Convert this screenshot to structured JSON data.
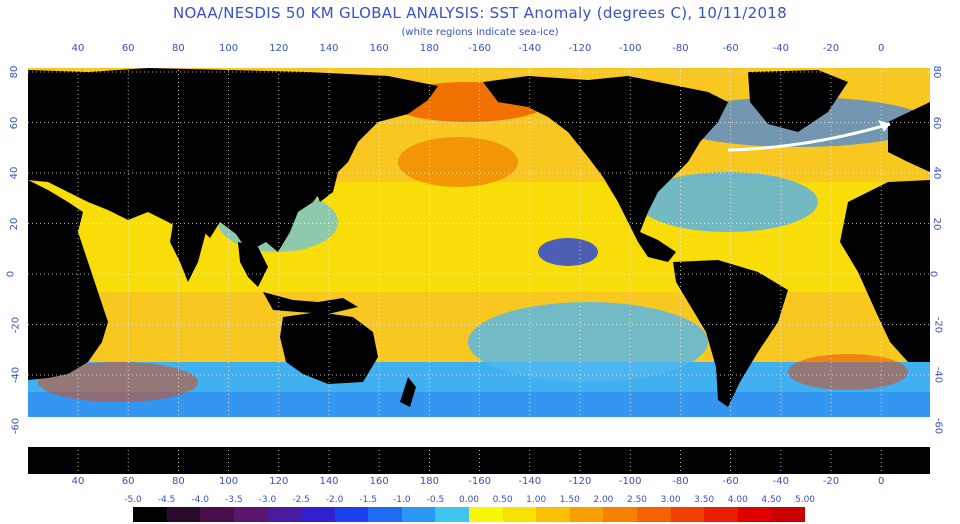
{
  "header": {
    "title": "NOAA/NESDIS 50 KM GLOBAL ANALYSIS: SST Anomaly (degrees C), 10/11/2018",
    "subtitle": "(white regions indicate sea-ice)"
  },
  "axes": {
    "top_ticks": [
      "40",
      "60",
      "80",
      "100",
      "120",
      "140",
      "160",
      "180",
      "-160",
      "-140",
      "-120",
      "-100",
      "-80",
      "-60",
      "-40",
      "-20",
      "0"
    ],
    "bottom_ticks": [
      "40",
      "60",
      "80",
      "100",
      "120",
      "140",
      "160",
      "180",
      "-160",
      "-140",
      "-120",
      "-100",
      "-80",
      "-60",
      "-40",
      "-20",
      "0"
    ],
    "left_ticks": [
      "80",
      "60",
      "40",
      "20",
      "0",
      "-20",
      "-40",
      "-60"
    ],
    "right_ticks": [
      "80",
      "60",
      "40",
      "20",
      "0",
      "-20",
      "-40",
      "-60"
    ]
  },
  "colorbar": {
    "labels": [
      "-5.0",
      "-4.5",
      "-4.0",
      "-3.5",
      "-3.0",
      "-2.5",
      "-2.0",
      "-1.5",
      "-1.0",
      "-0.5",
      "0.00",
      "0.50",
      "1.00",
      "1.50",
      "2.00",
      "2.50",
      "3.00",
      "3.50",
      "4.00",
      "4.50",
      "5.00"
    ],
    "colors": [
      "#000000",
      "#2a0a2a",
      "#4a0f4a",
      "#5a1570",
      "#4a1aa0",
      "#3020d0",
      "#1a40f0",
      "#1e6cf4",
      "#2a98f4",
      "#40c4f0",
      "#f8f800",
      "#f8e000",
      "#f8c000",
      "#f8a000",
      "#f88000",
      "#f86000",
      "#f04000",
      "#e82000",
      "#e00000",
      "#c80000"
    ]
  },
  "map": {
    "land_color": "#000000",
    "ice_color": "#ffffff",
    "ocean_base_color": "#f8c820",
    "grid_color": "#ffffff"
  }
}
